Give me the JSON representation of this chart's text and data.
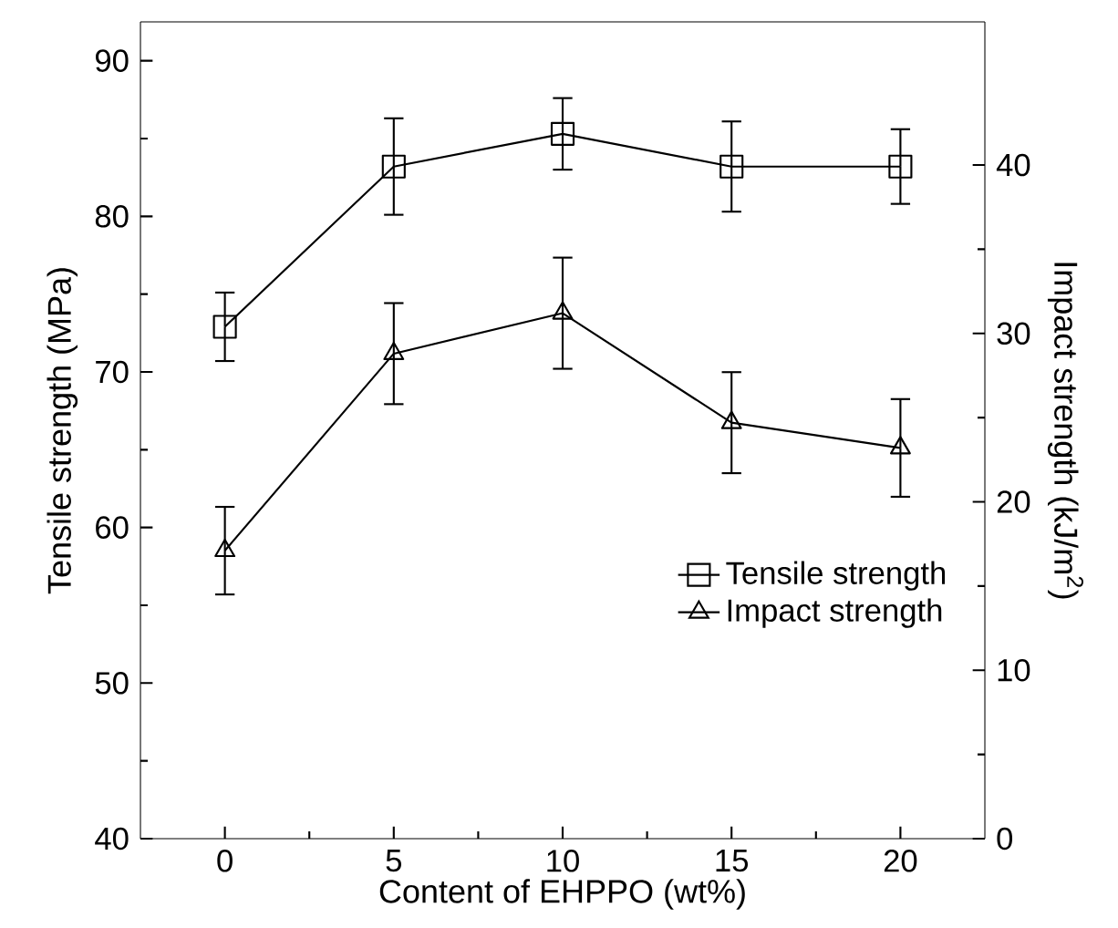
{
  "chart_data": {
    "type": "line",
    "xlabel": "Content of EHPPO (wt%)",
    "ylabel": "Tensile strength (MPa)",
    "y2label": "Impact strength (kJ/m$^{2}$)",
    "x": [
      0,
      5,
      10,
      15,
      20
    ],
    "xlim": [
      -2.5,
      22.5
    ],
    "xticks": [
      0,
      5,
      10,
      15,
      20
    ],
    "ylim": [
      40,
      92.5
    ],
    "yticks": [
      40,
      50,
      60,
      70,
      80,
      90
    ],
    "y2lim": [
      0,
      48.5
    ],
    "y2ticks": [
      0,
      10,
      20,
      30,
      40
    ],
    "legend": "right",
    "line_style": "solid",
    "grid": false,
    "series": [
      {
        "name": "Tensile strength",
        "color": "#000000",
        "marker": "square",
        "values": [
          72.9,
          83.2,
          85.3,
          83.2,
          83.2
        ],
        "errors": [
          2.2,
          3.1,
          2.3,
          2.9,
          2.4
        ]
      },
      {
        "name": "Impact strength",
        "color": "#000000",
        "marker": "triangle",
        "axis": "y2",
        "values": [
          17.1,
          28.8,
          31.2,
          24.7,
          23.2
        ],
        "errors": [
          2.6,
          3.0,
          3.3,
          3.0,
          2.9
        ]
      }
    ]
  }
}
